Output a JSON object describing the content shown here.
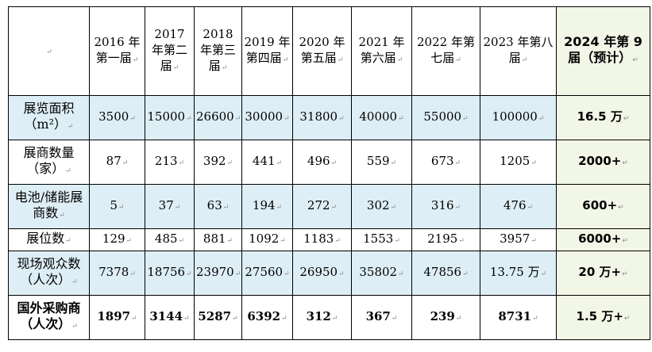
{
  "corner_mark": "↵",
  "mark": "↵",
  "columns": [
    {
      "label": "2016 年第一届"
    },
    {
      "label": "2017 年第二届"
    },
    {
      "label": "2018 年第三届"
    },
    {
      "label": "2019 年第四届"
    },
    {
      "label": "2020 年第五届"
    },
    {
      "label": "2021 年第六届"
    },
    {
      "label": "2022 年第七届"
    },
    {
      "label": "2023 年第八届"
    },
    {
      "label": "2024 年第 9 届（预计）"
    }
  ],
  "rows": [
    {
      "label": "展览面积（m²）",
      "values": [
        "3500",
        "15000",
        "26600",
        "30000",
        "31800",
        "40000",
        "55000",
        "100000",
        "16.5 万"
      ]
    },
    {
      "label": "展商数量（家）",
      "values": [
        "87",
        "213",
        "392",
        "441",
        "496",
        "559",
        "673",
        "1205",
        "2000+"
      ]
    },
    {
      "label": "电池/储能展商数",
      "values": [
        "5",
        "37",
        "63",
        "194",
        "272",
        "302",
        "316",
        "476",
        "600+"
      ]
    },
    {
      "label": "展位数",
      "values": [
        "129",
        "485",
        "881",
        "1092",
        "1183",
        "1553",
        "2195",
        "3957",
        "6000+"
      ]
    },
    {
      "label": "现场观众数（人次）",
      "values": [
        "7378",
        "18756",
        "23970",
        "27560",
        "26950",
        "35802",
        "47856",
        "13.75 万",
        "20 万+"
      ]
    },
    {
      "label": "国外采购商（人次）",
      "values": [
        "1897",
        "3144",
        "5287",
        "6392",
        "312",
        "367",
        "239",
        "8731",
        "1.5 万+"
      ]
    }
  ]
}
